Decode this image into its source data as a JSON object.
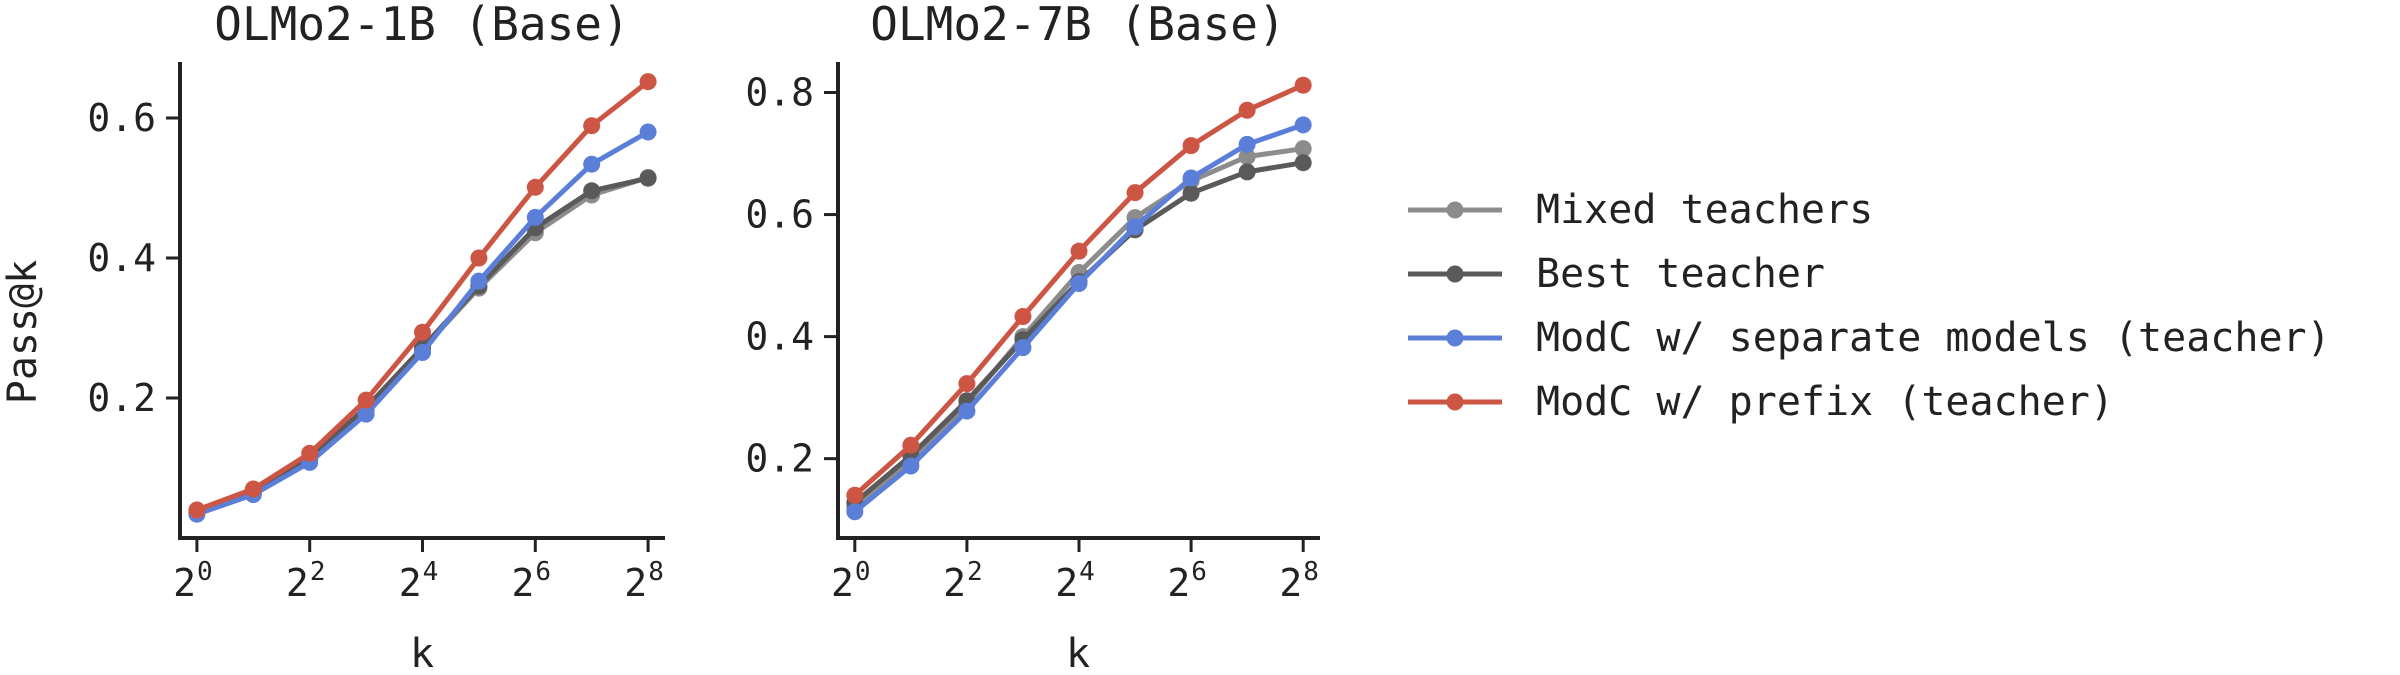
{
  "colors": {
    "mixed": "#8c8c8c",
    "best": "#5a5a5a",
    "separate": "#5b7fd8",
    "prefix": "#cc5544",
    "axis": "#222222"
  },
  "legend": {
    "location": "right",
    "entries": [
      {
        "key": "mixed",
        "label": "Mixed teachers"
      },
      {
        "key": "best",
        "label": "Best teacher"
      },
      {
        "key": "separate",
        "label": "ModC w/ separate models (teacher)"
      },
      {
        "key": "prefix",
        "label": "ModC w/ prefix (teacher)"
      }
    ]
  },
  "chart_data": [
    {
      "type": "line",
      "title": "OLMo2-1B (Base)",
      "xlabel": "k",
      "ylabel": "Pass@k",
      "x_base": "2",
      "x_exponents": [
        0,
        1,
        2,
        3,
        4,
        5,
        6,
        7,
        8
      ],
      "x_tick_exponents": [
        "0",
        "2",
        "4",
        "6",
        "8"
      ],
      "xlim": [
        -0.3,
        8.3
      ],
      "ylim": [
        0.0,
        0.68
      ],
      "yticks": [
        0.2,
        0.4,
        0.6
      ],
      "ytick_labels": [
        "0.2",
        "0.4",
        "0.6"
      ],
      "grid": false,
      "series": [
        {
          "key": "mixed",
          "name": "Mixed teachers",
          "values": [
            0.036,
            0.064,
            0.113,
            0.183,
            0.27,
            0.357,
            0.436,
            0.49,
            0.515
          ]
        },
        {
          "key": "best",
          "name": "Best teacher",
          "values": [
            0.037,
            0.065,
            0.115,
            0.186,
            0.272,
            0.36,
            0.443,
            0.496,
            0.514
          ]
        },
        {
          "key": "separate",
          "name": "ModC w/ separate models (teacher)",
          "values": [
            0.034,
            0.062,
            0.108,
            0.177,
            0.265,
            0.367,
            0.458,
            0.534,
            0.58
          ]
        },
        {
          "key": "prefix",
          "name": "ModC w/ prefix (teacher)",
          "values": [
            0.04,
            0.07,
            0.121,
            0.197,
            0.294,
            0.4,
            0.501,
            0.589,
            0.652
          ]
        }
      ]
    },
    {
      "type": "line",
      "title": "OLMo2-7B (Base)",
      "xlabel": "k",
      "ylabel": "",
      "x_base": "2",
      "x_exponents": [
        0,
        1,
        2,
        3,
        4,
        5,
        6,
        7,
        8
      ],
      "x_tick_exponents": [
        "0",
        "2",
        "4",
        "6",
        "8"
      ],
      "xlim": [
        -0.3,
        8.3
      ],
      "ylim": [
        0.07,
        0.85
      ],
      "yticks": [
        0.2,
        0.4,
        0.6,
        0.8
      ],
      "ytick_labels": [
        "0.2",
        "0.4",
        "0.6",
        "0.8"
      ],
      "grid": false,
      "series": [
        {
          "key": "mixed",
          "name": "Mixed teachers",
          "values": [
            0.12,
            0.195,
            0.29,
            0.4,
            0.505,
            0.595,
            0.655,
            0.695,
            0.708
          ]
        },
        {
          "key": "best",
          "name": "Best teacher",
          "values": [
            0.128,
            0.205,
            0.295,
            0.395,
            0.49,
            0.575,
            0.635,
            0.67,
            0.685
          ]
        },
        {
          "key": "separate",
          "name": "ModC w/ separate models (teacher)",
          "values": [
            0.113,
            0.188,
            0.278,
            0.382,
            0.487,
            0.58,
            0.66,
            0.715,
            0.747
          ]
        },
        {
          "key": "prefix",
          "name": "ModC w/ prefix (teacher)",
          "values": [
            0.14,
            0.222,
            0.323,
            0.433,
            0.54,
            0.636,
            0.713,
            0.771,
            0.812
          ]
        }
      ]
    }
  ]
}
